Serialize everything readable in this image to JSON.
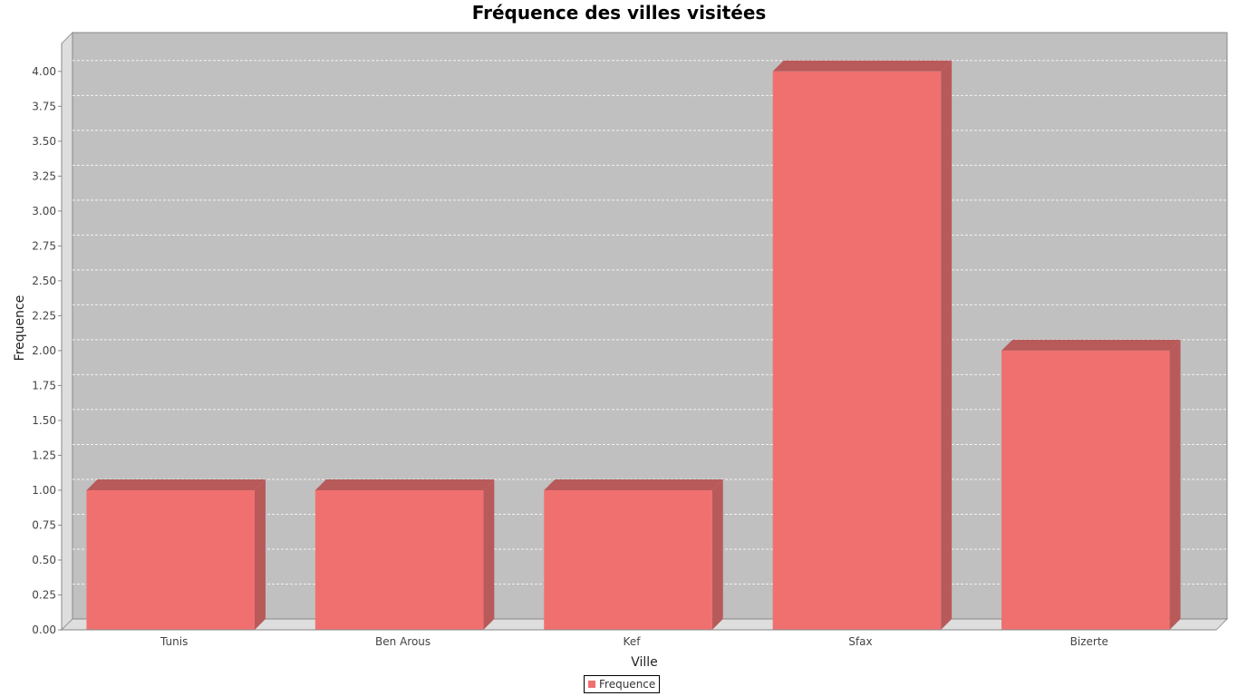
{
  "chart_data": {
    "type": "bar",
    "title": "Fréquence des villes visitées",
    "xlabel": "Ville",
    "ylabel": "Frequence",
    "categories": [
      "Tunis",
      "Ben Arous",
      "Kef",
      "Sfax",
      "Bizerte"
    ],
    "series": [
      {
        "name": "Frequence",
        "values": [
          1,
          1,
          1,
          4,
          2
        ]
      }
    ],
    "ylim": [
      0,
      4.2
    ],
    "yticks": [
      "0.00",
      "0.25",
      "0.50",
      "0.75",
      "1.00",
      "1.25",
      "1.50",
      "1.75",
      "2.00",
      "2.25",
      "2.50",
      "2.75",
      "3.00",
      "3.25",
      "3.50",
      "3.75",
      "4.00"
    ],
    "grid": true,
    "legend": "bottom-center",
    "colors": {
      "bar": "#f07070",
      "bar_side": "#b85a5a",
      "plot_bg": "#c0c0c0",
      "wall": "#dedede",
      "grid": "#ffffff"
    }
  }
}
